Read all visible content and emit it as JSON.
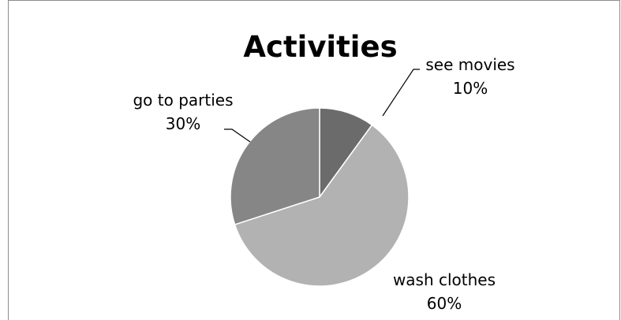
{
  "chart_data": {
    "type": "pie",
    "title": "Activities",
    "categories": [
      "see movies",
      "wash clothes",
      "go to parties"
    ],
    "values": [
      10,
      60,
      30
    ],
    "value_labels": [
      "10%",
      "60%",
      "30%"
    ],
    "colors": [
      "#6b6b6b",
      "#b2b2b2",
      "#868686"
    ],
    "legend": "none"
  }
}
